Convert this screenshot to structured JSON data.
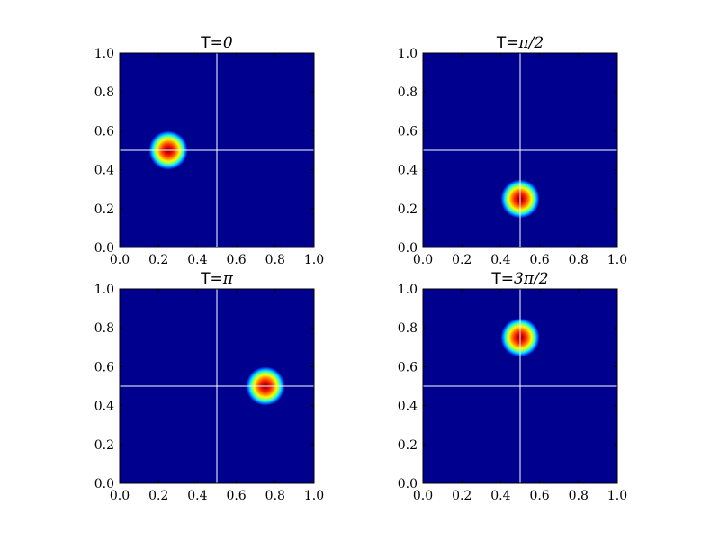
{
  "chart_data": [
    {
      "type": "heatmap",
      "title": "T=0",
      "title_prefix": "T=",
      "title_math": "0",
      "xlim": [
        0.0,
        1.0
      ],
      "ylim": [
        0.0,
        1.0
      ],
      "xticks": [
        "0.0",
        "0.2",
        "0.4",
        "0.6",
        "0.8",
        "1.0"
      ],
      "yticks": [
        "0.0",
        "0.2",
        "0.4",
        "0.6",
        "0.8",
        "1.0"
      ],
      "crosshair": {
        "x": 0.5,
        "y": 0.5
      },
      "blob": {
        "x": 0.25,
        "y": 0.5
      }
    },
    {
      "type": "heatmap",
      "title": "T=π/2",
      "title_prefix": "T=",
      "title_math": "π/2",
      "xlim": [
        0.0,
        1.0
      ],
      "ylim": [
        0.0,
        1.0
      ],
      "xticks": [
        "0.0",
        "0.2",
        "0.4",
        "0.6",
        "0.8",
        "1.0"
      ],
      "yticks": [
        "0.0",
        "0.2",
        "0.4",
        "0.6",
        "0.8",
        "1.0"
      ],
      "crosshair": {
        "x": 0.5,
        "y": 0.5
      },
      "blob": {
        "x": 0.5,
        "y": 0.25
      }
    },
    {
      "type": "heatmap",
      "title": "T=π",
      "title_prefix": "T=",
      "title_math": "π",
      "xlim": [
        0.0,
        1.0
      ],
      "ylim": [
        0.0,
        1.0
      ],
      "xticks": [
        "0.0",
        "0.2",
        "0.4",
        "0.6",
        "0.8",
        "1.0"
      ],
      "yticks": [
        "0.0",
        "0.2",
        "0.4",
        "0.6",
        "0.8",
        "1.0"
      ],
      "crosshair": {
        "x": 0.5,
        "y": 0.5
      },
      "blob": {
        "x": 0.75,
        "y": 0.5
      }
    },
    {
      "type": "heatmap",
      "title": "T=3π/2",
      "title_prefix": "T=",
      "title_math": "3π/2",
      "xlim": [
        0.0,
        1.0
      ],
      "ylim": [
        0.0,
        1.0
      ],
      "xticks": [
        "0.0",
        "0.2",
        "0.4",
        "0.6",
        "0.8",
        "1.0"
      ],
      "yticks": [
        "0.0",
        "0.2",
        "0.4",
        "0.6",
        "0.8",
        "1.0"
      ],
      "crosshair": {
        "x": 0.5,
        "y": 0.5
      },
      "blob": {
        "x": 0.5,
        "y": 0.75
      }
    }
  ],
  "colors": {
    "background": "#00008f",
    "crosshair": "#ffffff",
    "colormap": "jet"
  }
}
